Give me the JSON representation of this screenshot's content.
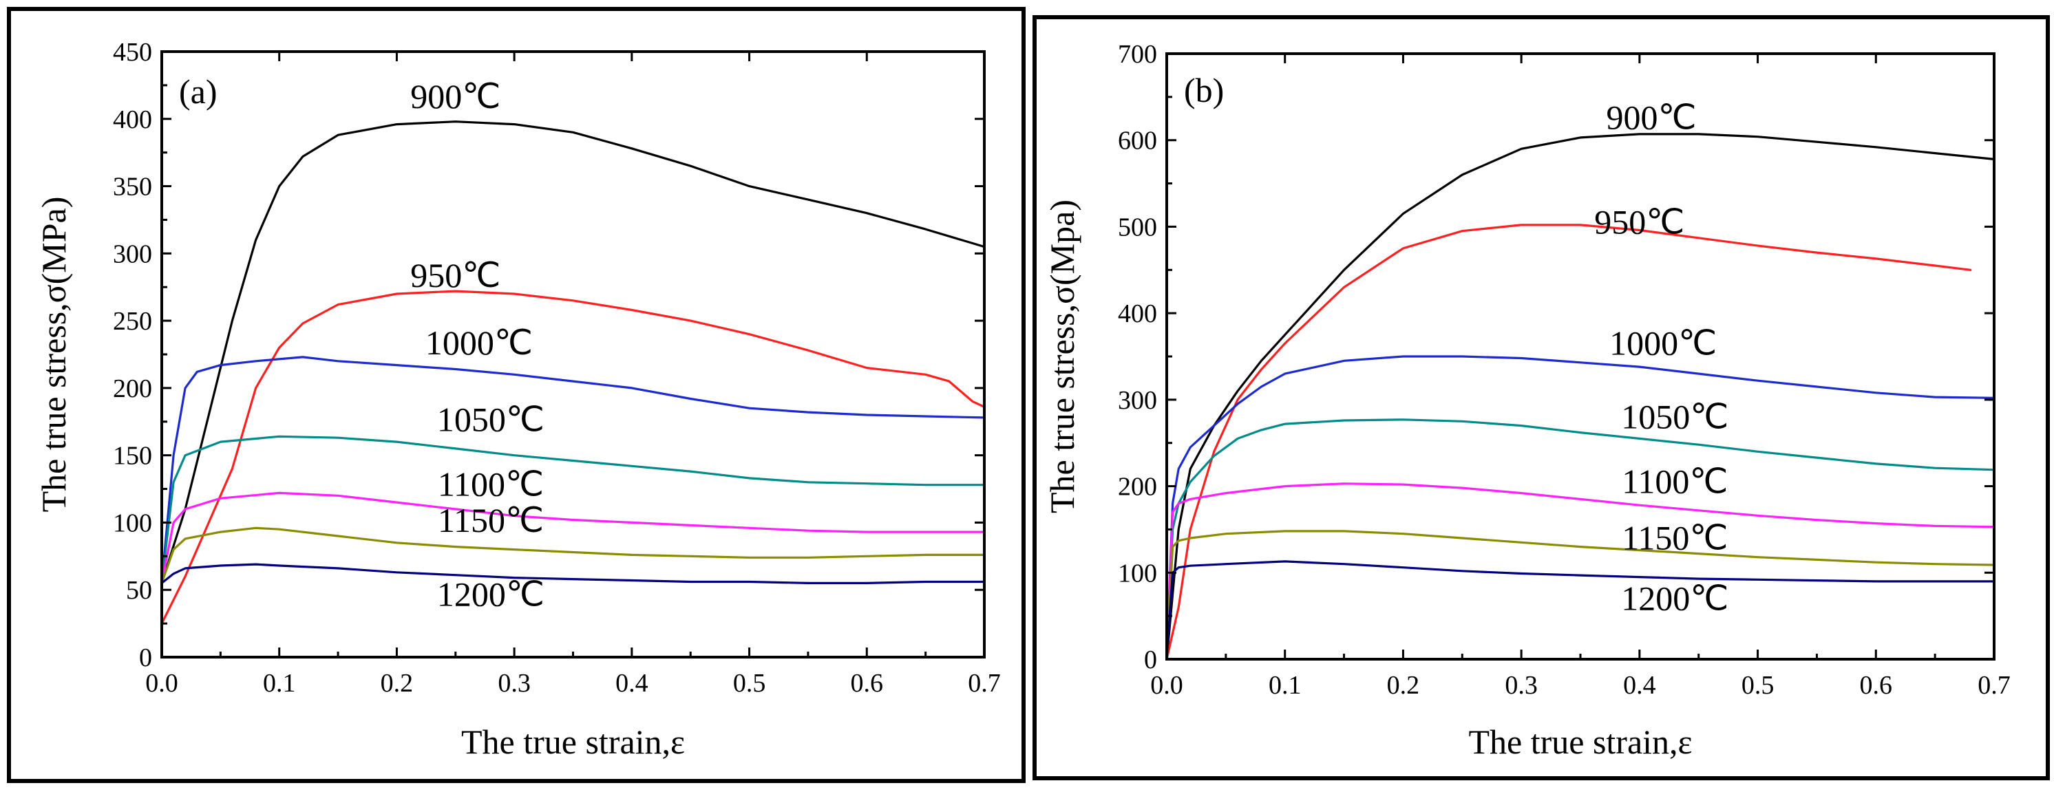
{
  "chart_data": [
    {
      "type": "line",
      "panel_label": "(a)",
      "xlabel": "The true strain,ε",
      "ylabel": "The true stress,σ(MPa)",
      "xlim": [
        0,
        0.7
      ],
      "ylim": [
        0,
        450
      ],
      "xticks": [
        0.0,
        0.1,
        0.2,
        0.3,
        0.4,
        0.5,
        0.6,
        0.7
      ],
      "xtick_labels": [
        "0.0",
        "0.1",
        "0.2",
        "0.3",
        "0.4",
        "0.5",
        "0.6",
        "0.7"
      ],
      "yticks": [
        0,
        50,
        100,
        150,
        200,
        250,
        300,
        350,
        400,
        450
      ],
      "ytick_labels": [
        "0",
        "50",
        "100",
        "150",
        "200",
        "250",
        "300",
        "350",
        "400",
        "450"
      ],
      "series": [
        {
          "name": "900℃",
          "color": "#000000",
          "label_at": [
            0.25,
            408
          ],
          "x": [
            0,
            0.02,
            0.04,
            0.06,
            0.08,
            0.1,
            0.12,
            0.15,
            0.2,
            0.25,
            0.3,
            0.35,
            0.4,
            0.45,
            0.5,
            0.55,
            0.6,
            0.65,
            0.7
          ],
          "y": [
            55,
            110,
            180,
            250,
            310,
            350,
            372,
            388,
            396,
            398,
            396,
            390,
            378,
            365,
            350,
            340,
            330,
            318,
            305
          ]
        },
        {
          "name": "950℃",
          "color": "#ff2020",
          "label_at": [
            0.25,
            275
          ],
          "x": [
            0,
            0.02,
            0.04,
            0.06,
            0.08,
            0.1,
            0.12,
            0.15,
            0.2,
            0.25,
            0.3,
            0.35,
            0.4,
            0.45,
            0.5,
            0.55,
            0.6,
            0.65,
            0.67,
            0.69,
            0.7
          ],
          "y": [
            25,
            60,
            100,
            140,
            200,
            230,
            248,
            262,
            270,
            272,
            270,
            265,
            258,
            250,
            240,
            228,
            215,
            210,
            205,
            190,
            186
          ]
        },
        {
          "name": "1000℃",
          "color": "#1c2ad0",
          "label_at": [
            0.27,
            225
          ],
          "x": [
            0,
            0.01,
            0.02,
            0.03,
            0.05,
            0.08,
            0.12,
            0.15,
            0.2,
            0.25,
            0.3,
            0.35,
            0.4,
            0.45,
            0.5,
            0.55,
            0.6,
            0.65,
            0.7
          ],
          "y": [
            55,
            150,
            200,
            212,
            217,
            220,
            223,
            220,
            217,
            214,
            210,
            205,
            200,
            192,
            185,
            182,
            180,
            179,
            178
          ]
        },
        {
          "name": "1050℃",
          "color": "#008b8b",
          "label_at": [
            0.28,
            168
          ],
          "x": [
            0,
            0.01,
            0.02,
            0.05,
            0.1,
            0.15,
            0.2,
            0.25,
            0.3,
            0.35,
            0.4,
            0.45,
            0.5,
            0.55,
            0.6,
            0.65,
            0.7
          ],
          "y": [
            55,
            130,
            150,
            160,
            164,
            163,
            160,
            155,
            150,
            146,
            142,
            138,
            133,
            130,
            129,
            128,
            128
          ]
        },
        {
          "name": "1100℃",
          "color": "#ff20ff",
          "label_at": [
            0.28,
            120
          ],
          "x": [
            0,
            0.01,
            0.02,
            0.05,
            0.1,
            0.15,
            0.2,
            0.25,
            0.3,
            0.35,
            0.4,
            0.45,
            0.5,
            0.55,
            0.6,
            0.65,
            0.7
          ],
          "y": [
            55,
            100,
            110,
            118,
            122,
            120,
            115,
            110,
            105,
            102,
            100,
            98,
            96,
            94,
            93,
            93,
            93
          ]
        },
        {
          "name": "1150℃",
          "color": "#8b8b00",
          "label_at": [
            0.28,
            93
          ],
          "x": [
            0,
            0.01,
            0.02,
            0.05,
            0.08,
            0.1,
            0.15,
            0.2,
            0.25,
            0.3,
            0.35,
            0.4,
            0.45,
            0.5,
            0.55,
            0.6,
            0.65,
            0.7
          ],
          "y": [
            55,
            80,
            88,
            93,
            96,
            95,
            90,
            85,
            82,
            80,
            78,
            76,
            75,
            74,
            74,
            75,
            76,
            76
          ]
        },
        {
          "name": "1200℃",
          "color": "#000080",
          "label_at": [
            0.28,
            38
          ],
          "x": [
            0,
            0.01,
            0.02,
            0.05,
            0.08,
            0.1,
            0.15,
            0.2,
            0.25,
            0.3,
            0.35,
            0.4,
            0.45,
            0.5,
            0.55,
            0.6,
            0.65,
            0.7
          ],
          "y": [
            55,
            62,
            66,
            68,
            69,
            68,
            66,
            63,
            61,
            59,
            58,
            57,
            56,
            56,
            55,
            55,
            56,
            56
          ]
        }
      ]
    },
    {
      "type": "line",
      "panel_label": "(b)",
      "xlabel": "The true strain,ε",
      "ylabel": "The true stress,σ(Mpa)",
      "xlim": [
        0,
        0.7
      ],
      "ylim": [
        0,
        700
      ],
      "xticks": [
        0.0,
        0.1,
        0.2,
        0.3,
        0.4,
        0.5,
        0.6,
        0.7
      ],
      "xtick_labels": [
        "0.0",
        "0.1",
        "0.2",
        "0.3",
        "0.4",
        "0.5",
        "0.6",
        "0.7"
      ],
      "yticks": [
        0,
        100,
        200,
        300,
        400,
        500,
        600,
        700
      ],
      "ytick_labels": [
        "0",
        "100",
        "200",
        "300",
        "400",
        "500",
        "600",
        "700"
      ],
      "series": [
        {
          "name": "900℃",
          "color": "#000000",
          "label_at": [
            0.41,
            613
          ],
          "x": [
            0,
            0.01,
            0.02,
            0.04,
            0.06,
            0.08,
            0.1,
            0.15,
            0.2,
            0.25,
            0.3,
            0.35,
            0.4,
            0.45,
            0.5,
            0.55,
            0.6,
            0.65,
            0.7
          ],
          "y": [
            0,
            150,
            220,
            270,
            310,
            345,
            375,
            450,
            515,
            560,
            590,
            603,
            607,
            607,
            604,
            598,
            592,
            585,
            578
          ]
        },
        {
          "name": "950℃",
          "color": "#ff2020",
          "label_at": [
            0.4,
            492
          ],
          "x": [
            0,
            0.01,
            0.02,
            0.04,
            0.06,
            0.08,
            0.1,
            0.15,
            0.2,
            0.25,
            0.3,
            0.35,
            0.4,
            0.45,
            0.5,
            0.55,
            0.6,
            0.65,
            0.68
          ],
          "y": [
            0,
            60,
            150,
            240,
            300,
            335,
            365,
            430,
            475,
            495,
            502,
            502,
            496,
            487,
            478,
            470,
            463,
            455,
            450
          ]
        },
        {
          "name": "1000℃",
          "color": "#1c2ad0",
          "label_at": [
            0.42,
            352
          ],
          "x": [
            0,
            0.005,
            0.01,
            0.02,
            0.04,
            0.06,
            0.08,
            0.1,
            0.15,
            0.2,
            0.25,
            0.3,
            0.35,
            0.4,
            0.45,
            0.5,
            0.55,
            0.6,
            0.65,
            0.7
          ],
          "y": [
            0,
            180,
            220,
            245,
            270,
            295,
            315,
            330,
            345,
            350,
            350,
            348,
            343,
            338,
            330,
            322,
            315,
            308,
            303,
            302
          ]
        },
        {
          "name": "1050℃",
          "color": "#008b8b",
          "label_at": [
            0.43,
            267
          ],
          "x": [
            0,
            0.005,
            0.01,
            0.02,
            0.04,
            0.06,
            0.08,
            0.1,
            0.15,
            0.2,
            0.25,
            0.3,
            0.35,
            0.4,
            0.45,
            0.5,
            0.55,
            0.6,
            0.65,
            0.7
          ],
          "y": [
            0,
            150,
            180,
            205,
            235,
            255,
            265,
            272,
            276,
            277,
            275,
            270,
            262,
            255,
            248,
            240,
            233,
            226,
            221,
            219
          ]
        },
        {
          "name": "1100℃",
          "color": "#ff20ff",
          "label_at": [
            0.43,
            192
          ],
          "x": [
            0,
            0.005,
            0.01,
            0.02,
            0.05,
            0.1,
            0.15,
            0.2,
            0.25,
            0.3,
            0.35,
            0.4,
            0.45,
            0.5,
            0.55,
            0.6,
            0.65,
            0.7
          ],
          "y": [
            0,
            170,
            180,
            185,
            192,
            200,
            203,
            202,
            198,
            192,
            185,
            178,
            172,
            166,
            161,
            157,
            154,
            153
          ]
        },
        {
          "name": "1150℃",
          "color": "#8b8b00",
          "label_at": [
            0.43,
            127
          ],
          "x": [
            0,
            0.005,
            0.01,
            0.02,
            0.05,
            0.1,
            0.15,
            0.2,
            0.25,
            0.3,
            0.35,
            0.4,
            0.45,
            0.5,
            0.55,
            0.6,
            0.65,
            0.7
          ],
          "y": [
            0,
            130,
            137,
            140,
            145,
            148,
            148,
            145,
            140,
            135,
            130,
            126,
            122,
            118,
            115,
            112,
            110,
            109
          ]
        },
        {
          "name": "1200℃",
          "color": "#000080",
          "label_at": [
            0.43,
            57
          ],
          "x": [
            0,
            0.005,
            0.01,
            0.02,
            0.05,
            0.1,
            0.15,
            0.2,
            0.25,
            0.3,
            0.35,
            0.4,
            0.45,
            0.5,
            0.55,
            0.6,
            0.65,
            0.7
          ],
          "y": [
            0,
            100,
            106,
            108,
            110,
            113,
            110,
            106,
            102,
            99,
            97,
            95,
            93,
            92,
            91,
            90,
            90,
            90
          ]
        }
      ]
    }
  ]
}
